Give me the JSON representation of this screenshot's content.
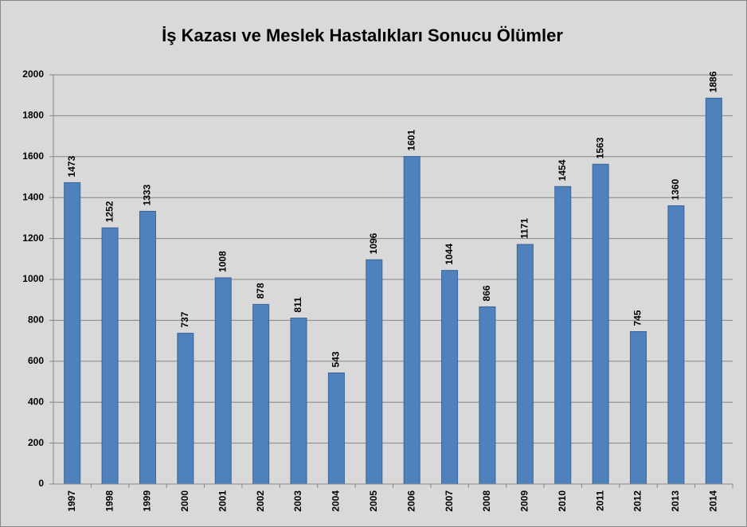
{
  "chart_data": {
    "type": "bar",
    "title": "İş Kazası ve Meslek Hastalıkları Sonucu Ölümler",
    "categories": [
      "1997",
      "1998",
      "1999",
      "2000",
      "2001",
      "2002",
      "2003",
      "2004",
      "2005",
      "2006",
      "2007",
      "2008",
      "2009",
      "2010",
      "2011",
      "2012",
      "2013",
      "2014"
    ],
    "values": [
      1473,
      1252,
      1333,
      737,
      1008,
      878,
      811,
      543,
      1096,
      1601,
      1044,
      866,
      1171,
      1454,
      1563,
      745,
      1360,
      1886
    ],
    "color": "#4f81bd",
    "ylim": [
      0,
      2000
    ],
    "yticks": [
      0,
      200,
      400,
      600,
      800,
      1000,
      1200,
      1400,
      1600,
      1800,
      2000
    ],
    "grid": true
  }
}
